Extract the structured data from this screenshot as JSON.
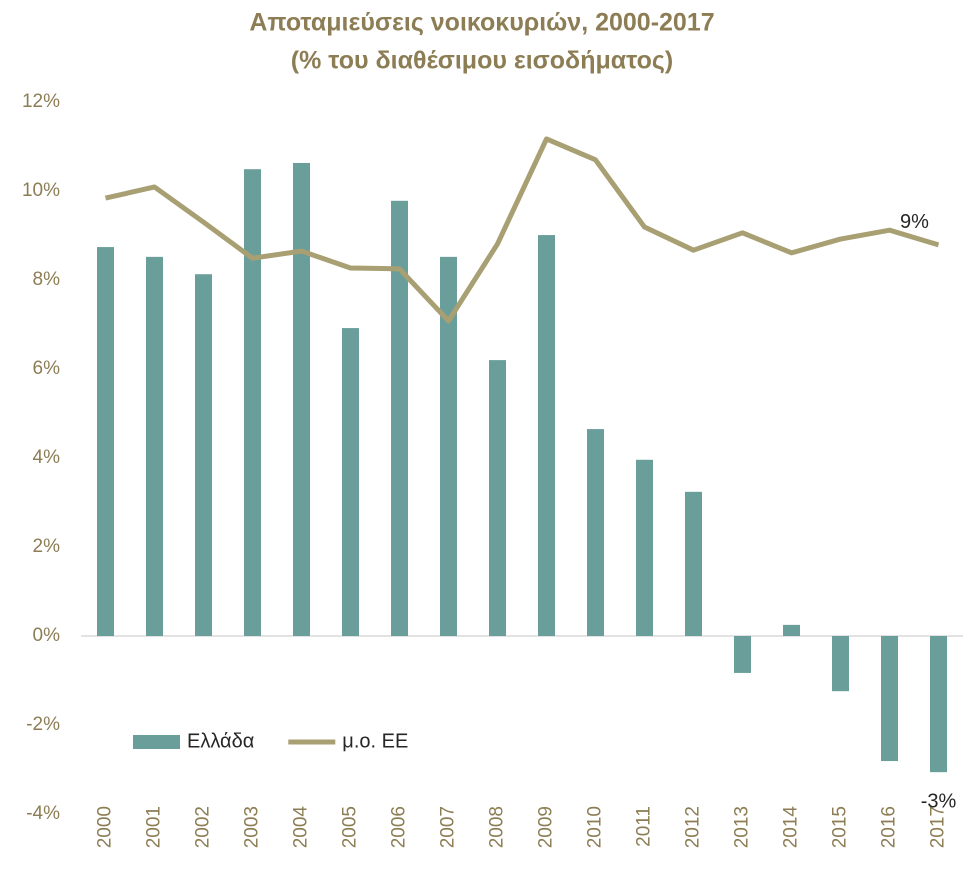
{
  "chart_data": {
    "type": "bar",
    "title": [
      "Αποταμιεύσεις νοικοκυριών, 2000-2017",
      "(% του διαθέσιμου εισοδήματος)"
    ],
    "categories": [
      "2000",
      "2001",
      "2002",
      "2003",
      "2004",
      "2005",
      "2006",
      "2007",
      "2008",
      "2009",
      "2010",
      "2011",
      "2012",
      "2013",
      "2014",
      "2015",
      "2016",
      "2017"
    ],
    "series": [
      {
        "name": "Ελλάδα",
        "type": "bar",
        "color": "#6a9e9b",
        "values": [
          8.74,
          8.52,
          8.13,
          10.49,
          10.63,
          6.92,
          9.78,
          8.52,
          6.2,
          9.01,
          4.65,
          3.96,
          3.24,
          -0.83,
          0.25,
          -1.24,
          -2.81,
          -3.06
        ],
        "value_labels": [
          null,
          null,
          null,
          null,
          null,
          null,
          null,
          null,
          null,
          null,
          null,
          null,
          null,
          null,
          null,
          null,
          null,
          "-3%"
        ]
      },
      {
        "name": "μ.ο. ΕΕ",
        "type": "line",
        "color": "#a89f73",
        "values": [
          9.84,
          10.09,
          9.3,
          8.49,
          8.65,
          8.27,
          8.25,
          7.08,
          8.81,
          11.17,
          10.7,
          9.19,
          8.67,
          9.06,
          8.61,
          8.92,
          9.12,
          8.79
        ],
        "value_labels": [
          null,
          null,
          null,
          null,
          null,
          null,
          null,
          null,
          null,
          null,
          null,
          null,
          null,
          null,
          null,
          null,
          null,
          "9%"
        ]
      }
    ],
    "ylim": [
      -4,
      12
    ],
    "yticks": [
      {
        "value": -4,
        "label": "-4%"
      },
      {
        "value": -2,
        "label": "-2%"
      },
      {
        "value": 0,
        "label": "0%"
      },
      {
        "value": 2,
        "label": "2%"
      },
      {
        "value": 4,
        "label": "4%"
      },
      {
        "value": 6,
        "label": "6%"
      },
      {
        "value": 8,
        "label": "8%"
      },
      {
        "value": 10,
        "label": "10%"
      },
      {
        "value": 12,
        "label": "12%"
      }
    ],
    "grid": false,
    "legend": "lower left"
  }
}
